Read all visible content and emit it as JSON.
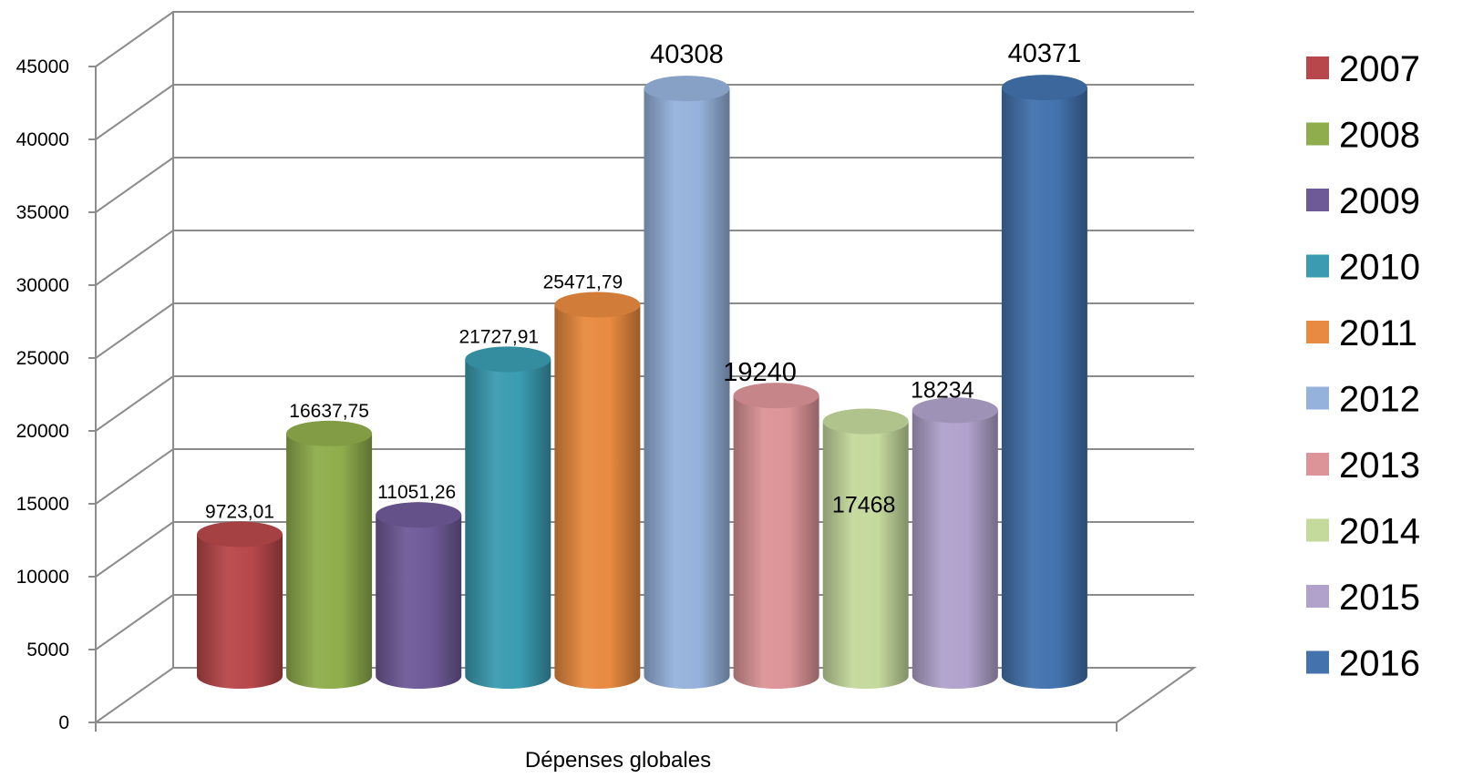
{
  "chart_data": {
    "type": "bar",
    "style": "3d-cylinder",
    "categories": [
      "Dépenses globales"
    ],
    "xlabel": "Dépenses globales",
    "ylabel": "",
    "title": "",
    "ylim": [
      0,
      45000
    ],
    "yticks": [
      "0",
      "5000",
      "10000",
      "15000",
      "20000",
      "25000",
      "30000",
      "35000",
      "40000",
      "45000"
    ],
    "grid": true,
    "legend_position": "right",
    "series": [
      {
        "name": "2007",
        "value": 9723.01,
        "label": "9723,01",
        "color": "#b7474a"
      },
      {
        "name": "2008",
        "value": 16637.75,
        "label": "16637,75",
        "color": "#8fad4c"
      },
      {
        "name": "2009",
        "value": 11051.26,
        "label": "11051,26",
        "color": "#6f5a98"
      },
      {
        "name": "2010",
        "value": 21727.91,
        "label": "21727,91",
        "color": "#3a9bb1"
      },
      {
        "name": "2011",
        "value": 25471.79,
        "label": "25471,79",
        "color": "#e88a3f"
      },
      {
        "name": "2012",
        "value": 40308,
        "label": "40308",
        "color": "#95b2dc"
      },
      {
        "name": "2013",
        "value": 19240,
        "label": "19240",
        "color": "#dc9498"
      },
      {
        "name": "2014",
        "value": 17468,
        "label": "17468",
        "color": "#c4d99c"
      },
      {
        "name": "2015",
        "value": 18234,
        "label": "18234",
        "color": "#b0a2cb"
      },
      {
        "name": "2016",
        "value": 40371,
        "label": "40371",
        "color": "#4372ad"
      }
    ]
  }
}
